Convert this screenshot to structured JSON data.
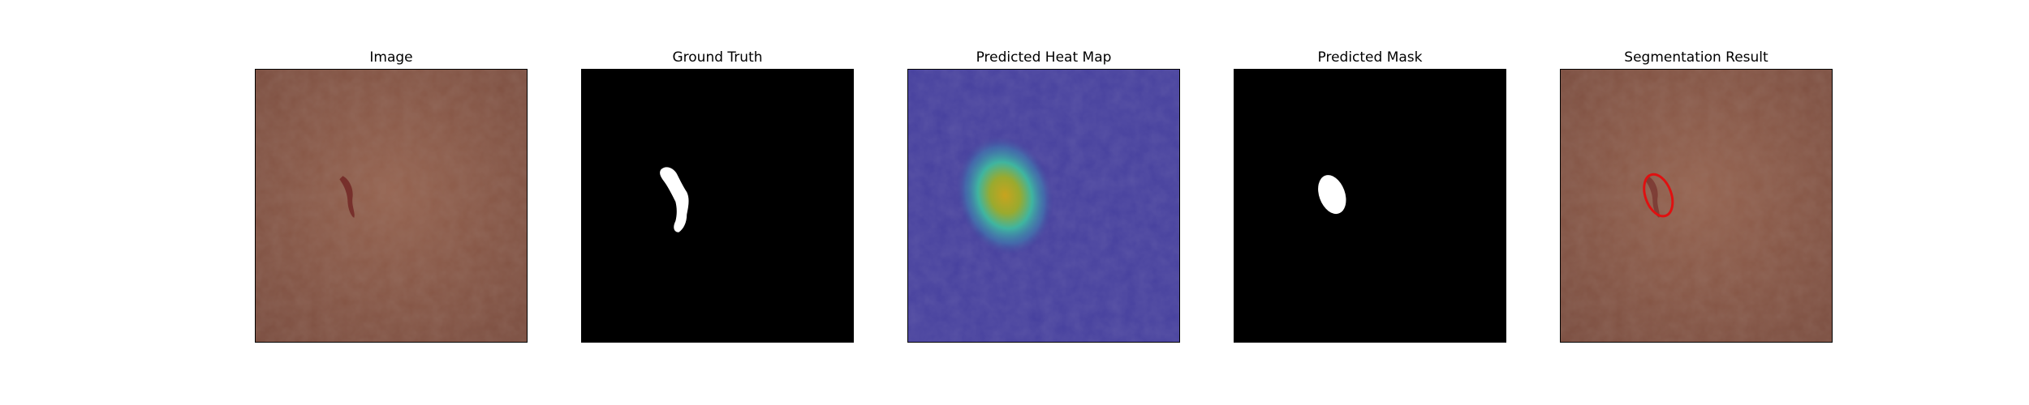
{
  "figure": {
    "panels": [
      {
        "title": "Image",
        "image_kind": "leather-photo"
      },
      {
        "title": "Ground Truth",
        "image_kind": "binary-mask"
      },
      {
        "title": "Predicted Heat Map",
        "image_kind": "heatmap-overlay"
      },
      {
        "title": "Predicted Mask",
        "image_kind": "binary-mask"
      },
      {
        "title": "Segmentation Result",
        "image_kind": "contour-overlay"
      }
    ]
  },
  "colors": {
    "leather": "#8a5a4a",
    "defect": "#6e1f1f",
    "mask_bg": "#000000",
    "mask_fg": "#ffffff",
    "heat_low": "#433a9a",
    "heat_mid": "#3fb5a0",
    "heat_high": "#c8a31e",
    "contour": "#e01010"
  }
}
